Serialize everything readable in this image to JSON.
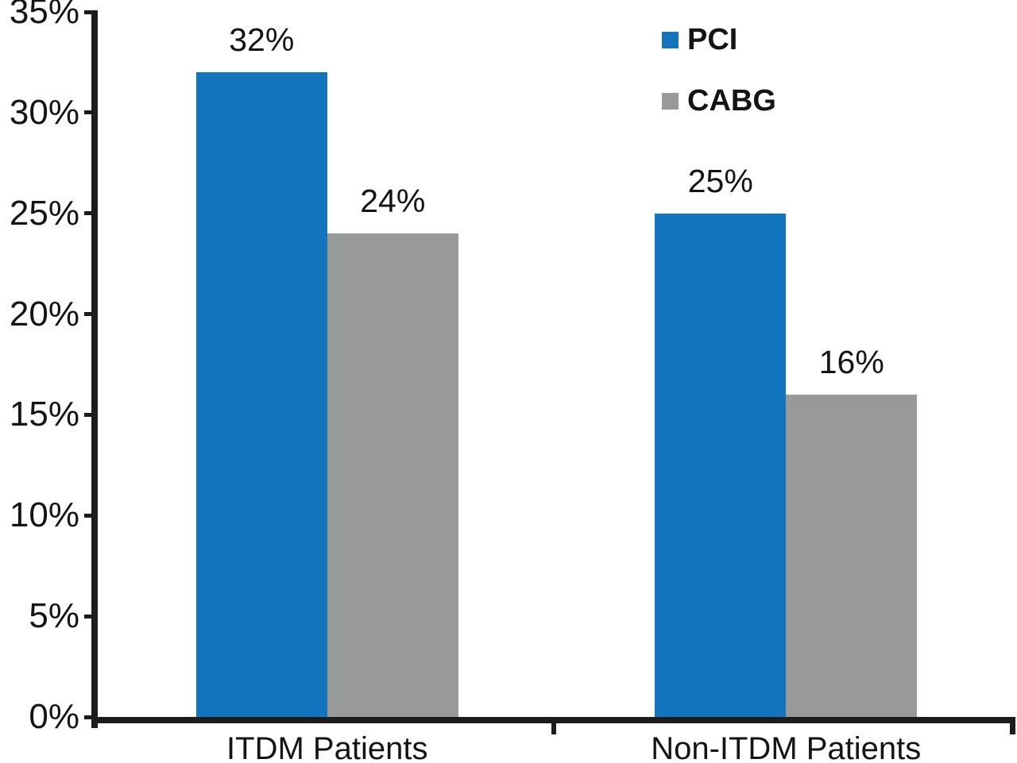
{
  "chart": {
    "background_color": "#ffffff",
    "axis_color": "#1c1c1c",
    "text_color": "#141414"
  },
  "chart_data": {
    "type": "bar",
    "title": "",
    "xlabel": "",
    "ylabel": "",
    "categories": [
      "ITDM Patients",
      "Non-ITDM Patients"
    ],
    "series": [
      {
        "name": "PCI",
        "color": "#1274BD",
        "values": [
          32,
          25
        ]
      },
      {
        "name": "CABG",
        "color": "#98999B",
        "values": [
          24,
          16
        ]
      }
    ],
    "data_labels": [
      [
        "32%",
        "25%"
      ],
      [
        "24%",
        "16%"
      ]
    ],
    "value_suffix": "%",
    "ylim": [
      0,
      35
    ],
    "ytick_step": 5,
    "ytick_labels": [
      "0%",
      "5%",
      "10%",
      "15%",
      "20%",
      "25%",
      "30%",
      "35%"
    ],
    "grid": false,
    "legend_position": "top-right"
  }
}
